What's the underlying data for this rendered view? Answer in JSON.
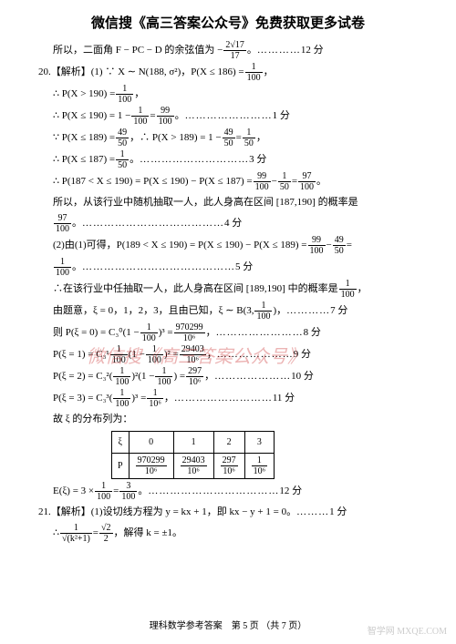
{
  "header": "微信搜《高三答案公众号》免费获取更多试卷",
  "l01_a": "所以，二面角 F − PC − D 的余弦值为 −",
  "f01n": "2√17",
  "f01d": "17",
  "l01_b": "。",
  "l01_pts": "12 分",
  "l02": "20.【解析】(1) ∵ X ∼ N(188, σ²)，P(X ≤ 186) = ",
  "f02n": "1",
  "f02d": "100",
  "l02b": "，",
  "l03": "∴ P(X > 190) = ",
  "f03n": "1",
  "f03d": "100",
  "l03b": "，",
  "l04": "∴ P(X ≤ 190) = 1 − ",
  "f04an": "1",
  "f04ad": "100",
  "l04m": " = ",
  "f04bn": "99",
  "f04bd": "100",
  "l04b": "。",
  "l04_pts": "1 分",
  "l05": "∵ P(X ≤ 189) = ",
  "f05an": "49",
  "f05ad": "50",
  "l05m": "，∴ P(X > 189) = 1 − ",
  "f05bn": "49",
  "f05bd": "50",
  "l05m2": " = ",
  "f05cn": "1",
  "f05cd": "50",
  "l05b": "，",
  "l06": "∴ P(X ≤ 187) = ",
  "f06n": "1",
  "f06d": "50",
  "l06b": "。",
  "l06_pts": "3 分",
  "l07": "∴ P(187 < X ≤ 190) = P(X ≤ 190) − P(X ≤ 187) = ",
  "f07an": "99",
  "f07ad": "100",
  "l07m": " − ",
  "f07bn": "1",
  "f07bd": "50",
  "l07m2": " = ",
  "f07cn": "97",
  "f07cd": "100",
  "l07b": "。",
  "l08": "所以，从该行业中随机抽取一人，此人身高在区间 [187,190] 的概率是",
  "f08n": "97",
  "f08d": "100",
  "l08b": "。",
  "l08_pts": "4 分",
  "l09": "(2)由(1)可得，P(189 < X ≤ 190) = P(X ≤ 190) − P(X ≤ 189) = ",
  "f09an": "99",
  "f09ad": "100",
  "l09m": " − ",
  "f09bn": "49",
  "f09bd": "50",
  "l09b": " =",
  "f10n": "1",
  "f10d": "100",
  "l10b": "。",
  "l10_pts": "5 分",
  "l11": "∴在该行业中任抽取一人，此人身高在区间 [189,190] 中的概率是 ",
  "f11n": "1",
  "f11d": "100",
  "l11b": "，",
  "l12": "由题意，ξ = 0，1，2，3，且由已知，ξ ∼ B(3, ",
  "f12n": "1",
  "f12d": "100",
  "l12b": ")，",
  "l12_pts": "7 分",
  "l13": "则 P(ξ = 0) = C₃⁰(1 − ",
  "f13an": "1",
  "f13ad": "100",
  "l13m": ")³ = ",
  "f13bn": "970299",
  "f13bd": "10⁶",
  "l13b": "，",
  "l13_pts": "8 分",
  "l14": "P(ξ = 1) = C₃¹ ",
  "f14an": "1",
  "f14ad": "100",
  "l14m": "(1 − ",
  "f14bn": "1",
  "f14bd": "100",
  "l14m2": ")² = ",
  "f14cn": "29403",
  "f14cd": "10⁶",
  "l14b": "，",
  "l14_pts": "9 分",
  "l15": "P(ξ = 2) = C₃²(",
  "f15an": "1",
  "f15ad": "100",
  "l15m": ")²(1 − ",
  "f15bn": "1",
  "f15bd": "100",
  "l15m2": ") = ",
  "f15cn": "297",
  "f15cd": "10⁶",
  "l15b": "，",
  "l15_pts": "10 分",
  "l16": "P(ξ = 3) = C₃³(",
  "f16an": "1",
  "f16ad": "100",
  "l16m": ")³ = ",
  "f16bn": "1",
  "f16bd": "10⁶",
  "l16b": "，",
  "l16_pts": "11 分",
  "l17": "故 ξ 的分布列为：",
  "t": {
    "h": [
      "ξ",
      "0",
      "1",
      "2",
      "3"
    ],
    "r": [
      "P",
      "970299",
      "29403",
      "297",
      "1"
    ],
    "rd": [
      "",
      "10⁶",
      "10⁶",
      "10⁶",
      "10⁶"
    ]
  },
  "l18": "E(ξ) = 3 × ",
  "f18an": "1",
  "f18ad": "100",
  "l18m": " = ",
  "f18bn": "3",
  "f18bd": "100",
  "l18b": "。",
  "l18_pts": "12 分",
  "l19": "21.【解析】(1)设切线方程为 y = kx + 1，即 kx − y + 1 = 0。",
  "l19_pts": "1 分",
  "l20": "∴ ",
  "f20an": "1",
  "f20ad": "√(k²+1)",
  "l20m": " = ",
  "f20bn": "√2",
  "f20bd": "2",
  "l20b": "，解得 k = ±1。",
  "footer": "理科数学参考答案　第 5 页 （共 7 页）",
  "wm1": "微信搜《高三答案公众号》",
  "wm2": "智学网 MXQE.COM"
}
